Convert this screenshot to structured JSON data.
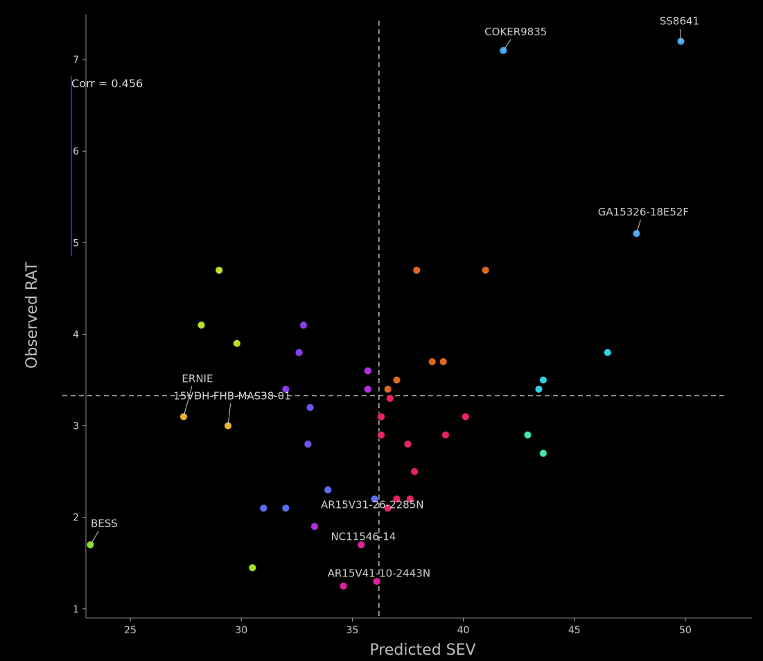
{
  "chart_data": {
    "type": "scatter",
    "title": "",
    "xlabel": "Predicted SEV",
    "ylabel": "Observed RAT",
    "xlim": [
      23,
      53
    ],
    "ylim": [
      0.9,
      7.5
    ],
    "xticks": [
      25,
      30,
      35,
      40,
      45,
      50
    ],
    "yticks": [
      1,
      2,
      3,
      4,
      5,
      6,
      7
    ],
    "grid": false,
    "annotation": "Corr = 0.456",
    "ref_lines": {
      "x": 36.2,
      "y": 3.33
    },
    "points": [
      {
        "x": 49.8,
        "y": 7.2,
        "color": "#3fa9f5",
        "label": "SS8641"
      },
      {
        "x": 41.8,
        "y": 7.1,
        "color": "#3fa9f5",
        "label": "COKER9835"
      },
      {
        "x": 47.8,
        "y": 5.1,
        "color": "#3fa9f5",
        "label": "GA15326-18E52F"
      },
      {
        "x": 46.5,
        "y": 3.8,
        "color": "#2fd0e0",
        "label": ""
      },
      {
        "x": 43.6,
        "y": 3.5,
        "color": "#2fd0e0",
        "label": ""
      },
      {
        "x": 43.4,
        "y": 3.4,
        "color": "#2fd0e0",
        "label": ""
      },
      {
        "x": 42.9,
        "y": 2.9,
        "color": "#3ee8b0",
        "label": ""
      },
      {
        "x": 43.6,
        "y": 2.7,
        "color": "#3ee8b0",
        "label": ""
      },
      {
        "x": 37.9,
        "y": 4.7,
        "color": "#e0661e",
        "label": ""
      },
      {
        "x": 41.0,
        "y": 4.7,
        "color": "#e0661e",
        "label": ""
      },
      {
        "x": 38.6,
        "y": 3.7,
        "color": "#e0661e",
        "label": ""
      },
      {
        "x": 39.1,
        "y": 3.7,
        "color": "#e0661e",
        "label": ""
      },
      {
        "x": 37.0,
        "y": 3.5,
        "color": "#e0661e",
        "label": ""
      },
      {
        "x": 36.6,
        "y": 3.4,
        "color": "#e0661e",
        "label": ""
      },
      {
        "x": 36.7,
        "y": 3.3,
        "color": "#e8245e",
        "label": ""
      },
      {
        "x": 36.3,
        "y": 3.1,
        "color": "#e8245e",
        "label": ""
      },
      {
        "x": 40.1,
        "y": 3.1,
        "color": "#e8245e",
        "label": ""
      },
      {
        "x": 36.3,
        "y": 2.9,
        "color": "#e8245e",
        "label": ""
      },
      {
        "x": 39.2,
        "y": 2.9,
        "color": "#e8245e",
        "label": ""
      },
      {
        "x": 37.5,
        "y": 2.8,
        "color": "#e8245e",
        "label": ""
      },
      {
        "x": 37.8,
        "y": 2.5,
        "color": "#e8245e",
        "label": ""
      },
      {
        "x": 37.0,
        "y": 2.2,
        "color": "#e8245e",
        "label": ""
      },
      {
        "x": 37.6,
        "y": 2.2,
        "color": "#e8245e",
        "label": ""
      },
      {
        "x": 36.6,
        "y": 2.1,
        "color": "#e8245e",
        "label": ""
      },
      {
        "x": 36.1,
        "y": 1.3,
        "color": "#e020a0",
        "label": ""
      },
      {
        "x": 34.6,
        "y": 1.25,
        "color": "#e020a0",
        "label": ""
      },
      {
        "x": 35.4,
        "y": 1.7,
        "color": "#e020a0",
        "label": ""
      },
      {
        "x": 33.3,
        "y": 1.9,
        "color": "#b030e0",
        "label": ""
      },
      {
        "x": 35.7,
        "y": 3.6,
        "color": "#b030e0",
        "label": ""
      },
      {
        "x": 35.7,
        "y": 3.4,
        "color": "#b030e0",
        "label": ""
      },
      {
        "x": 32.8,
        "y": 4.1,
        "color": "#8a3cf0",
        "label": ""
      },
      {
        "x": 32.6,
        "y": 3.8,
        "color": "#8a3cf0",
        "label": ""
      },
      {
        "x": 32.0,
        "y": 3.4,
        "color": "#8a3cf0",
        "label": ""
      },
      {
        "x": 33.1,
        "y": 3.2,
        "color": "#6a55f5",
        "label": ""
      },
      {
        "x": 33.0,
        "y": 2.8,
        "color": "#6a55f5",
        "label": ""
      },
      {
        "x": 33.9,
        "y": 2.3,
        "color": "#5a6ef5",
        "label": ""
      },
      {
        "x": 36.0,
        "y": 2.2,
        "color": "#5a6ef5",
        "label": ""
      },
      {
        "x": 32.0,
        "y": 2.1,
        "color": "#5a6ef5",
        "label": ""
      },
      {
        "x": 31.0,
        "y": 2.1,
        "color": "#5a6ef5",
        "label": ""
      },
      {
        "x": 29.0,
        "y": 4.7,
        "color": "#b9e02a",
        "label": ""
      },
      {
        "x": 28.2,
        "y": 4.1,
        "color": "#b9e02a",
        "label": ""
      },
      {
        "x": 29.8,
        "y": 3.9,
        "color": "#b9e02a",
        "label": ""
      },
      {
        "x": 27.4,
        "y": 3.1,
        "color": "#e8b01e",
        "label": "ERNIE"
      },
      {
        "x": 29.4,
        "y": 3.0,
        "color": "#e8b01e",
        "label": "15VDH-FHB-MAS38-01"
      },
      {
        "x": 23.2,
        "y": 1.7,
        "color": "#7fe02a",
        "label": "BESS"
      },
      {
        "x": 30.5,
        "y": 1.45,
        "color": "#a8e02a",
        "label": ""
      }
    ],
    "extra_labels": [
      {
        "text": "AR15V31-26-2285N",
        "x": 35.9,
        "y": 2.1
      },
      {
        "text": "NC11546-14",
        "x": 35.5,
        "y": 1.75
      },
      {
        "text": "AR15V41-10-2443N",
        "x": 36.2,
        "y": 1.35
      }
    ]
  }
}
